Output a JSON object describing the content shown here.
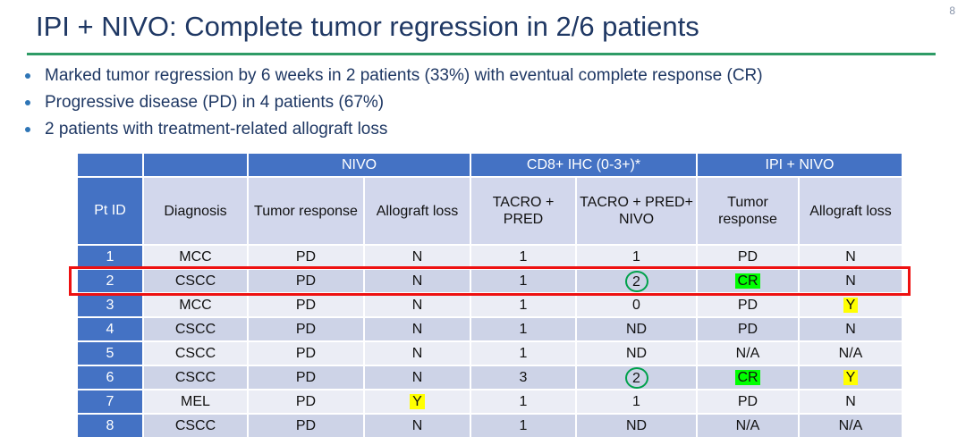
{
  "page": {
    "number": "8"
  },
  "title": "IPI + NIVO: Complete tumor regression in 2/6 patients",
  "bullets": [
    "Marked tumor regression by 6 weeks in 2 patients (33%) with eventual complete response (CR)",
    "Progressive disease (PD) in 4 patients (67%)",
    "2 patients with treatment-related allograft loss"
  ],
  "colors": {
    "title_text": "#1F3864",
    "accent_line_green": "#2E9B66",
    "table_header_blue": "#4472C4",
    "subheader_bg": "#D2D7EC",
    "row_band_light": "#EBEDF5",
    "row_band_dark": "#CDD3E7",
    "highlight_green": "#00FF00",
    "highlight_yellow": "#FFFF00",
    "circle_green": "#00A14B",
    "row_outline_red": "#EE1111"
  },
  "table": {
    "group_headers": [
      {
        "label": "",
        "span": 1
      },
      {
        "label": "",
        "span": 1
      },
      {
        "label": "NIVO",
        "span": 2
      },
      {
        "label": "CD8+ IHC (0-3+)*",
        "span": 2
      },
      {
        "label": "IPI + NIVO",
        "span": 2
      }
    ],
    "column_headers": [
      "Pt ID",
      "Diagnosis",
      "Tumor response",
      "Allograft loss",
      "TACRO + PRED",
      "TACRO + PRED+ NIVO",
      "Tumor response",
      "Allograft loss"
    ],
    "rows": [
      {
        "pt_id": "1",
        "outlined": false,
        "cells": [
          {
            "v": "MCC"
          },
          {
            "v": "PD"
          },
          {
            "v": "N"
          },
          {
            "v": "1"
          },
          {
            "v": "1"
          },
          {
            "v": "PD"
          },
          {
            "v": "N"
          }
        ]
      },
      {
        "pt_id": "2",
        "outlined": true,
        "cells": [
          {
            "v": "CSCC"
          },
          {
            "v": "PD"
          },
          {
            "v": "N"
          },
          {
            "v": "1"
          },
          {
            "v": "2",
            "circled": true
          },
          {
            "v": "CR",
            "hl": "green"
          },
          {
            "v": "N"
          }
        ]
      },
      {
        "pt_id": "3",
        "outlined": false,
        "cells": [
          {
            "v": "MCC"
          },
          {
            "v": "PD"
          },
          {
            "v": "N"
          },
          {
            "v": "1"
          },
          {
            "v": "0"
          },
          {
            "v": "PD"
          },
          {
            "v": "Y",
            "hl": "yellow"
          }
        ]
      },
      {
        "pt_id": "4",
        "outlined": false,
        "cells": [
          {
            "v": "CSCC"
          },
          {
            "v": "PD"
          },
          {
            "v": "N"
          },
          {
            "v": "1"
          },
          {
            "v": "ND"
          },
          {
            "v": "PD"
          },
          {
            "v": "N"
          }
        ]
      },
      {
        "pt_id": "5",
        "outlined": false,
        "cells": [
          {
            "v": "CSCC"
          },
          {
            "v": "PD"
          },
          {
            "v": "N"
          },
          {
            "v": "1"
          },
          {
            "v": "ND"
          },
          {
            "v": "N/A"
          },
          {
            "v": "N/A"
          }
        ]
      },
      {
        "pt_id": "6",
        "outlined": false,
        "cells": [
          {
            "v": "CSCC"
          },
          {
            "v": "PD"
          },
          {
            "v": "N"
          },
          {
            "v": "3"
          },
          {
            "v": "2",
            "circled": true
          },
          {
            "v": "CR",
            "hl": "green"
          },
          {
            "v": "Y",
            "hl": "yellow"
          }
        ]
      },
      {
        "pt_id": "7",
        "outlined": false,
        "cells": [
          {
            "v": "MEL"
          },
          {
            "v": "PD"
          },
          {
            "v": "Y",
            "hl": "yellow"
          },
          {
            "v": "1"
          },
          {
            "v": "1"
          },
          {
            "v": "PD"
          },
          {
            "v": "N"
          }
        ]
      },
      {
        "pt_id": "8",
        "outlined": false,
        "cells": [
          {
            "v": "CSCC"
          },
          {
            "v": "PD"
          },
          {
            "v": "N"
          },
          {
            "v": "1"
          },
          {
            "v": "ND"
          },
          {
            "v": "N/A"
          },
          {
            "v": "N/A"
          }
        ]
      }
    ]
  }
}
